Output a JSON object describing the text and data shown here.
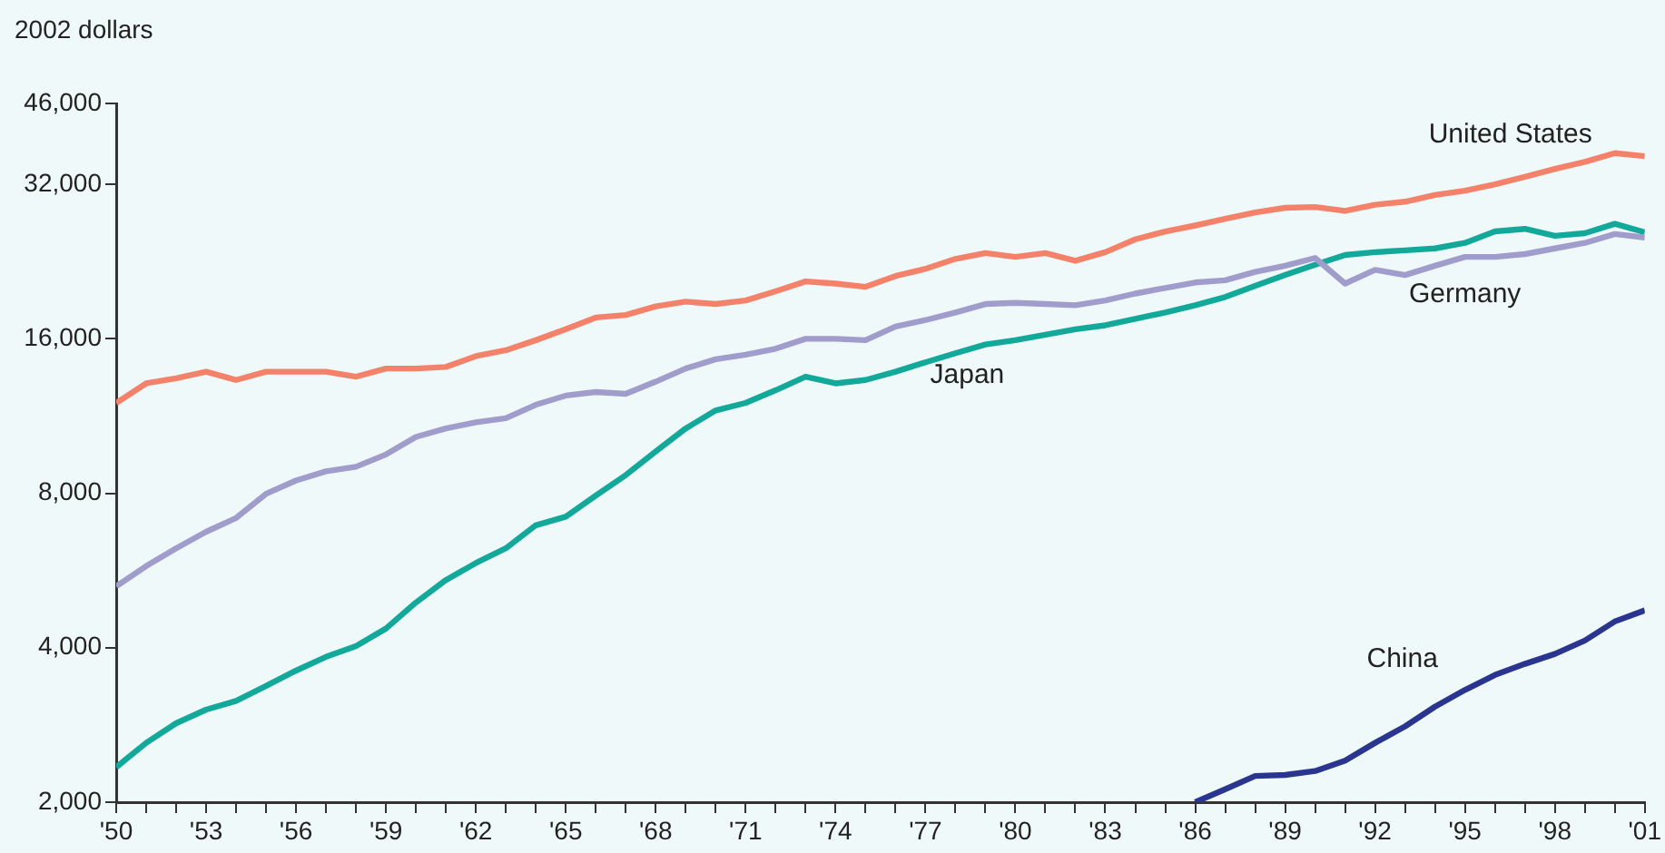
{
  "chart_data": {
    "type": "line",
    "ylabel": "2002 dollars",
    "log": "y",
    "grid": false,
    "legend": false,
    "marker": "none",
    "line_style": "solid",
    "x": [
      1950,
      1951,
      1952,
      1953,
      1954,
      1955,
      1956,
      1957,
      1958,
      1959,
      1960,
      1961,
      1962,
      1963,
      1964,
      1965,
      1966,
      1967,
      1968,
      1969,
      1970,
      1971,
      1972,
      1973,
      1974,
      1975,
      1976,
      1977,
      1978,
      1979,
      1980,
      1981,
      1982,
      1983,
      1984,
      1985,
      1986,
      1987,
      1988,
      1989,
      1990,
      1991,
      1992,
      1993,
      1994,
      1995,
      1996,
      1997,
      1998,
      1999,
      2000,
      2001
    ],
    "xlim": [
      1950,
      2001
    ],
    "xticks": [
      {
        "value": 1950,
        "label": "'50"
      },
      {
        "value": 1951,
        "label": null
      },
      {
        "value": 1952,
        "label": null
      },
      {
        "value": 1953,
        "label": "'53"
      },
      {
        "value": 1954,
        "label": null
      },
      {
        "value": 1955,
        "label": null
      },
      {
        "value": 1956,
        "label": "'56"
      },
      {
        "value": 1957,
        "label": null
      },
      {
        "value": 1958,
        "label": null
      },
      {
        "value": 1959,
        "label": "'59"
      },
      {
        "value": 1960,
        "label": null
      },
      {
        "value": 1961,
        "label": null
      },
      {
        "value": 1962,
        "label": "'62"
      },
      {
        "value": 1963,
        "label": null
      },
      {
        "value": 1964,
        "label": null
      },
      {
        "value": 1965,
        "label": "'65"
      },
      {
        "value": 1966,
        "label": null
      },
      {
        "value": 1967,
        "label": null
      },
      {
        "value": 1968,
        "label": "'68"
      },
      {
        "value": 1969,
        "label": null
      },
      {
        "value": 1970,
        "label": null
      },
      {
        "value": 1971,
        "label": "'71"
      },
      {
        "value": 1972,
        "label": null
      },
      {
        "value": 1973,
        "label": null
      },
      {
        "value": 1974,
        "label": "'74"
      },
      {
        "value": 1975,
        "label": null
      },
      {
        "value": 1976,
        "label": null
      },
      {
        "value": 1977,
        "label": "'77"
      },
      {
        "value": 1978,
        "label": null
      },
      {
        "value": 1979,
        "label": null
      },
      {
        "value": 1980,
        "label": "'80"
      },
      {
        "value": 1981,
        "label": null
      },
      {
        "value": 1982,
        "label": null
      },
      {
        "value": 1983,
        "label": "'83"
      },
      {
        "value": 1984,
        "label": null
      },
      {
        "value": 1985,
        "label": null
      },
      {
        "value": 1986,
        "label": "'86"
      },
      {
        "value": 1987,
        "label": null
      },
      {
        "value": 1988,
        "label": null
      },
      {
        "value": 1989,
        "label": "'89"
      },
      {
        "value": 1990,
        "label": null
      },
      {
        "value": 1991,
        "label": null
      },
      {
        "value": 1992,
        "label": "'92"
      },
      {
        "value": 1993,
        "label": null
      },
      {
        "value": 1994,
        "label": null
      },
      {
        "value": 1995,
        "label": "'95"
      },
      {
        "value": 1996,
        "label": null
      },
      {
        "value": 1997,
        "label": null
      },
      {
        "value": 1998,
        "label": "'98"
      },
      {
        "value": 1999,
        "label": null
      },
      {
        "value": 2000,
        "label": null
      },
      {
        "value": 2001,
        "label": "'01"
      }
    ],
    "ylim": [
      2000,
      46000
    ],
    "yticks": [
      {
        "value": 2000,
        "label": "2,000"
      },
      {
        "value": 4000,
        "label": "4,000"
      },
      {
        "value": 8000,
        "label": "8,000"
      },
      {
        "value": 16000,
        "label": "16,000"
      },
      {
        "value": 32000,
        "label": "32,000"
      },
      {
        "value": 46000,
        "label": "46,000"
      }
    ],
    "series": [
      {
        "name": "United States",
        "color": "#f4826a",
        "values": [
          12000,
          13100,
          13400,
          13800,
          13300,
          13800,
          13800,
          13800,
          13500,
          14000,
          14000,
          14100,
          14800,
          15200,
          15900,
          16700,
          17600,
          17800,
          18500,
          18900,
          18700,
          19000,
          19800,
          20700,
          20500,
          20200,
          21200,
          21900,
          22900,
          23500,
          23100,
          23500,
          22700,
          23600,
          25000,
          25900,
          26600,
          27400,
          28200,
          28800,
          28900,
          28400,
          29200,
          29600,
          30500,
          31100,
          32000,
          33100,
          34300,
          35400,
          36800,
          36300
        ]
      },
      {
        "name": "Germany",
        "color": "#a09ccc",
        "values": [
          5270,
          5770,
          6250,
          6730,
          7160,
          7980,
          8470,
          8830,
          9010,
          9520,
          10300,
          10700,
          11000,
          11200,
          11900,
          12400,
          12600,
          12500,
          13200,
          14000,
          14600,
          14900,
          15300,
          16000,
          16000,
          15900,
          16900,
          17400,
          18000,
          18700,
          18800,
          18700,
          18600,
          19000,
          19600,
          20100,
          20600,
          20800,
          21600,
          22200,
          23000,
          20500,
          21800,
          21300,
          22200,
          23100,
          23100,
          23400,
          24000,
          24600,
          25600,
          25200
        ]
      },
      {
        "name": "Japan",
        "color": "#12a89a",
        "values": [
          2340,
          2610,
          2850,
          3030,
          3150,
          3370,
          3610,
          3840,
          4030,
          4360,
          4900,
          5420,
          5850,
          6250,
          6930,
          7200,
          7920,
          8680,
          9650,
          10700,
          11600,
          12000,
          12700,
          13500,
          13100,
          13300,
          13800,
          14400,
          15000,
          15600,
          15900,
          16300,
          16700,
          17000,
          17500,
          18000,
          18600,
          19300,
          20300,
          21300,
          22300,
          23300,
          23600,
          23800,
          24000,
          24600,
          25900,
          26200,
          25400,
          25700,
          26800,
          25800
        ]
      },
      {
        "name": "China",
        "color": "#2a3590",
        "values": [
          null,
          null,
          null,
          null,
          null,
          null,
          null,
          null,
          null,
          null,
          null,
          null,
          null,
          null,
          null,
          null,
          null,
          null,
          null,
          null,
          null,
          null,
          null,
          null,
          null,
          null,
          null,
          null,
          null,
          null,
          null,
          null,
          null,
          null,
          null,
          null,
          2000,
          2120,
          2250,
          2260,
          2300,
          2410,
          2610,
          2810,
          3070,
          3310,
          3540,
          3720,
          3890,
          4130,
          4500,
          4730
        ]
      }
    ]
  }
}
